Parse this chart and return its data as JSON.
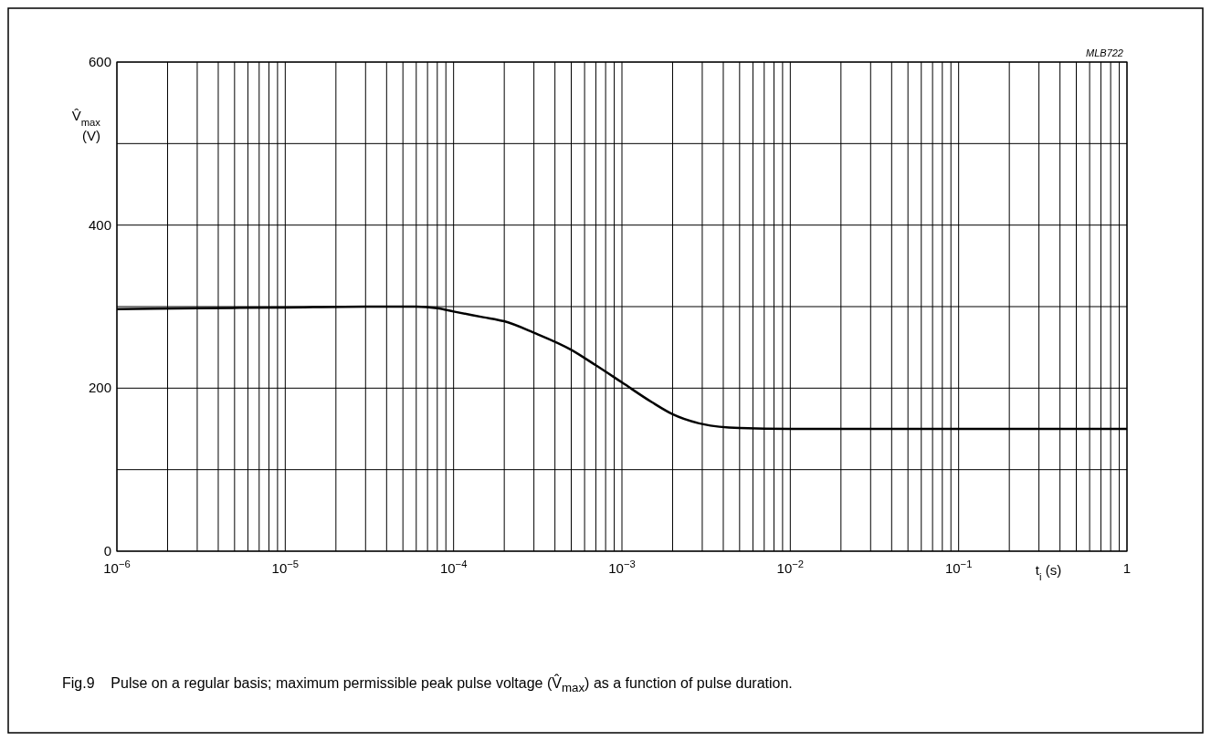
{
  "chart_data": {
    "type": "line",
    "ylabel": "V̂$_{max}$\n(V)",
    "xlabel": "t$_{i}$ (s)",
    "annotations": [
      "MLB722",
      "Fig.9    Pulse on a regular basis; maximum permissible peak pulse voltage (V̂$_{max}$) as a function of pulse duration."
    ],
    "log": "x",
    "grid": true,
    "xlim": [
      1e-06,
      1
    ],
    "ylim": [
      0,
      600
    ],
    "yticks": [
      0,
      {
        "value": 100,
        "label": null
      },
      200,
      {
        "value": 300,
        "label": null
      },
      400,
      {
        "value": 500,
        "label": null
      },
      600
    ],
    "xticks": [
      {
        "value": 1e-06,
        "label": "10$^{−6}$"
      },
      {
        "value": 2e-06,
        "label": null
      },
      {
        "value": 3e-06,
        "label": null
      },
      {
        "value": 4e-06,
        "label": null
      },
      {
        "value": 5e-06,
        "label": null
      },
      {
        "value": 6e-06,
        "label": null
      },
      {
        "value": 7e-06,
        "label": null
      },
      {
        "value": 8e-06,
        "label": null
      },
      {
        "value": 9e-06,
        "label": null
      },
      {
        "value": 1e-05,
        "label": "10$^{−5}$"
      },
      {
        "value": 2e-05,
        "label": null
      },
      {
        "value": 3e-05,
        "label": null
      },
      {
        "value": 4e-05,
        "label": null
      },
      {
        "value": 5e-05,
        "label": null
      },
      {
        "value": 6e-05,
        "label": null
      },
      {
        "value": 7e-05,
        "label": null
      },
      {
        "value": 8e-05,
        "label": null
      },
      {
        "value": 9e-05,
        "label": null
      },
      {
        "value": 0.0001,
        "label": "10$^{−4}$"
      },
      {
        "value": 0.0002,
        "label": null
      },
      {
        "value": 0.0003,
        "label": null
      },
      {
        "value": 0.0004,
        "label": null
      },
      {
        "value": 0.0005,
        "label": null
      },
      {
        "value": 0.0006,
        "label": null
      },
      {
        "value": 0.0007,
        "label": null
      },
      {
        "value": 0.0008,
        "label": null
      },
      {
        "value": 0.0009,
        "label": null
      },
      {
        "value": 0.001,
        "label": "10$^{−3}$"
      },
      {
        "value": 0.002,
        "label": null
      },
      {
        "value": 0.003,
        "label": null
      },
      {
        "value": 0.004,
        "label": null
      },
      {
        "value": 0.005,
        "label": null
      },
      {
        "value": 0.006,
        "label": null
      },
      {
        "value": 0.007,
        "label": null
      },
      {
        "value": 0.008,
        "label": null
      },
      {
        "value": 0.009,
        "label": null
      },
      {
        "value": 0.01,
        "label": "10$^{−2}$"
      },
      {
        "value": 0.02,
        "label": null
      },
      {
        "value": 0.03,
        "label": null
      },
      {
        "value": 0.04,
        "label": null
      },
      {
        "value": 0.05,
        "label": null
      },
      {
        "value": 0.06,
        "label": null
      },
      {
        "value": 0.07,
        "label": null
      },
      {
        "value": 0.08,
        "label": null
      },
      {
        "value": 0.09,
        "label": null
      },
      {
        "value": 0.1,
        "label": "10$^{−1}$"
      },
      {
        "value": 0.2,
        "label": null
      },
      {
        "value": 0.3,
        "label": null
      },
      {
        "value": 0.4,
        "label": null
      },
      {
        "value": 0.5,
        "label": null
      },
      {
        "value": 0.6,
        "label": null
      },
      {
        "value": 0.7,
        "label": null
      },
      {
        "value": 0.8,
        "label": null
      },
      {
        "value": 0.9,
        "label": null
      },
      1
    ],
    "series": [
      {
        "color": "#000000",
        "x": [
          1e-06,
          3e-06,
          1e-05,
          3e-05,
          6e-05,
          8e-05,
          0.0001,
          0.00015,
          0.0002,
          0.0003,
          0.0005,
          0.0007,
          0.001,
          0.0015,
          0.002,
          0.003,
          0.005,
          0.01,
          0.1,
          1
        ],
        "values": [
          297,
          298,
          299,
          300,
          300,
          298,
          294,
          287,
          282,
          268,
          247,
          228,
          207,
          183,
          168,
          156,
          151,
          150,
          150,
          150
        ]
      }
    ]
  }
}
